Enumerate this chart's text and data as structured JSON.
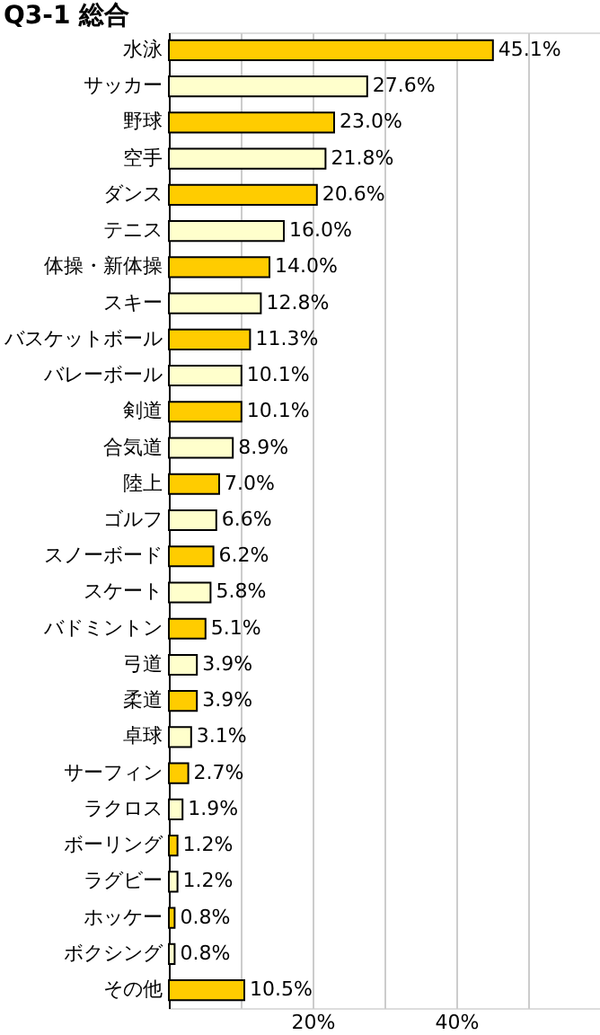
{
  "chart_data": {
    "type": "bar",
    "orientation": "horizontal",
    "title": "Q3-1 総合",
    "categories": [
      "水泳",
      "サッカー",
      "野球",
      "空手",
      "ダンス",
      "テニス",
      "体操・新体操",
      "スキー",
      "バスケットボール",
      "バレーボール",
      "剣道",
      "合気道",
      "陸上",
      "ゴルフ",
      "スノーボード",
      "スケート",
      "バドミントン",
      "弓道",
      "柔道",
      "卓球",
      "サーフィン",
      "ラクロス",
      "ボーリング",
      "ラグビー",
      "ホッケー",
      "ボクシング",
      "その他"
    ],
    "values": [
      45.1,
      27.6,
      23.0,
      21.8,
      20.6,
      16.0,
      14.0,
      12.8,
      11.3,
      10.1,
      10.1,
      8.9,
      7.0,
      6.6,
      6.2,
      5.8,
      5.1,
      3.9,
      3.9,
      3.1,
      2.7,
      1.9,
      1.2,
      1.2,
      0.8,
      0.8,
      10.5
    ],
    "value_labels": [
      "45.1%",
      "27.6%",
      "23.0%",
      "21.8%",
      "20.6%",
      "16.0%",
      "14.0%",
      "12.8%",
      "11.3%",
      "10.1%",
      "10.1%",
      "8.9%",
      "7.0%",
      "6.6%",
      "6.2%",
      "5.8%",
      "5.1%",
      "3.9%",
      "3.9%",
      "3.1%",
      "2.7%",
      "1.9%",
      "1.2%",
      "1.2%",
      "0.8%",
      "0.8%",
      "10.5%"
    ],
    "colors": [
      "#ffcc00",
      "#ffffcc",
      "#ffcc00",
      "#ffffcc",
      "#ffcc00",
      "#ffffcc",
      "#ffcc00",
      "#ffffcc",
      "#ffcc00",
      "#ffffcc",
      "#ffcc00",
      "#ffffcc",
      "#ffcc00",
      "#ffffcc",
      "#ffcc00",
      "#ffffcc",
      "#ffcc00",
      "#ffffcc",
      "#ffcc00",
      "#ffffcc",
      "#ffcc00",
      "#ffffcc",
      "#ffcc00",
      "#ffffcc",
      "#ffcc00",
      "#ffffcc",
      "#ffcc00"
    ],
    "xlim": [
      0,
      60
    ],
    "xticks": [
      {
        "value": 0,
        "label": null
      },
      {
        "value": 10,
        "label": null
      },
      {
        "value": 20,
        "label": "20%"
      },
      {
        "value": 30,
        "label": null
      },
      {
        "value": 40,
        "label": "40%"
      },
      {
        "value": 50,
        "label": null
      }
    ],
    "grid": "x",
    "legend": false
  }
}
